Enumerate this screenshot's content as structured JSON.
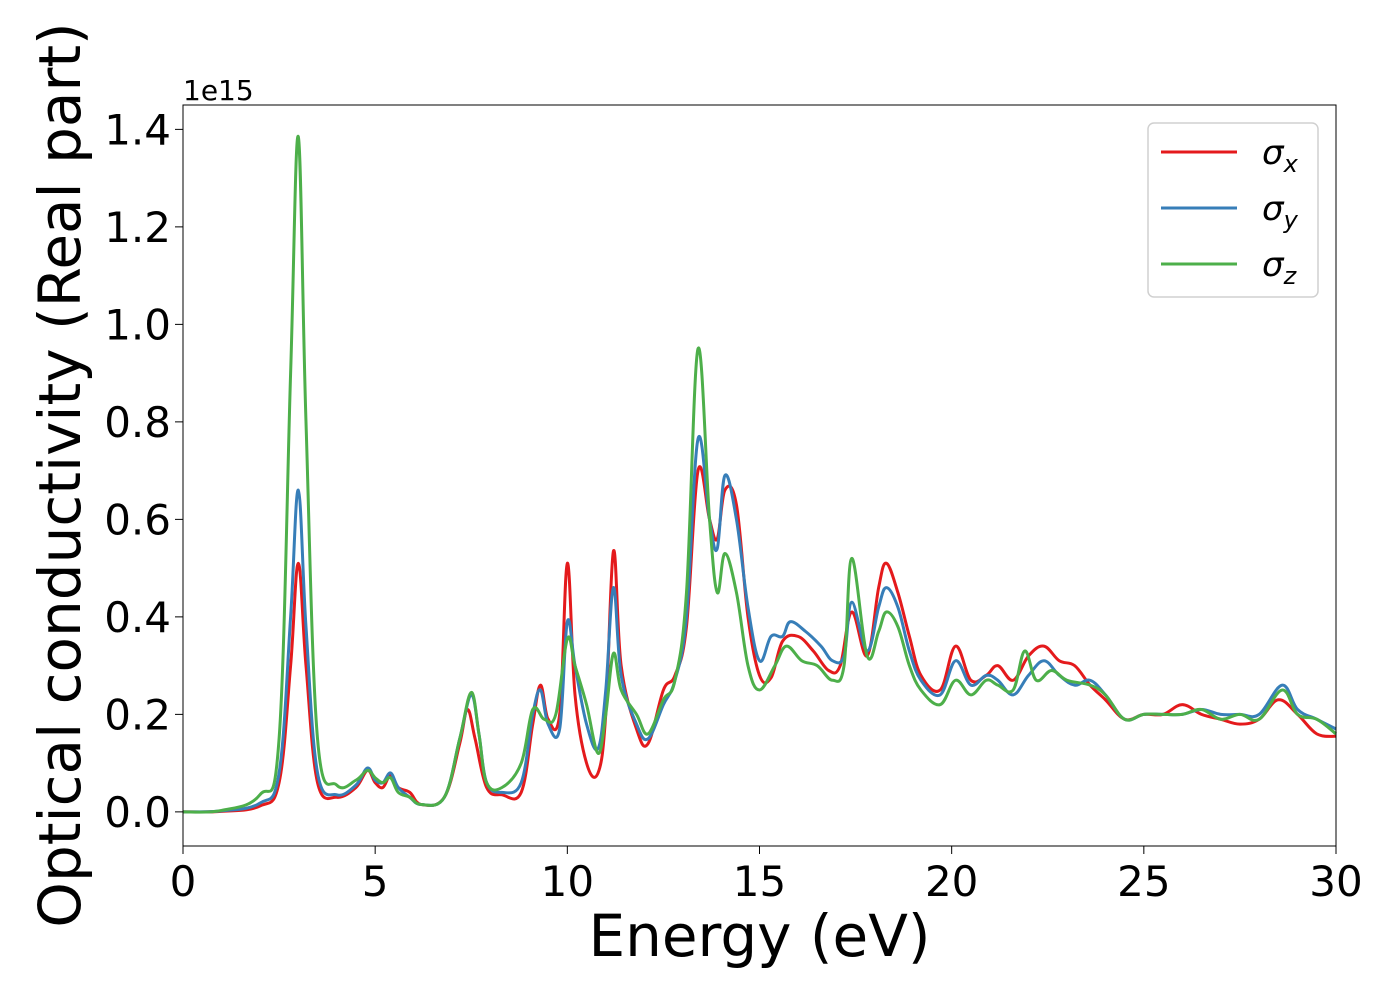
{
  "chart_data": {
    "type": "line",
    "xlabel": "Energy (eV)",
    "ylabel": "Optical conductivity (Real part)",
    "y_offset_label": "1e15",
    "xlim": [
      0,
      30
    ],
    "ylim": [
      -0.07,
      1.45
    ],
    "x_ticks": [
      0,
      5,
      10,
      15,
      20,
      25,
      30
    ],
    "y_ticks": [
      0.0,
      0.2,
      0.4,
      0.6,
      0.8,
      1.0,
      1.2,
      1.4
    ],
    "x_tick_labels": [
      "0",
      "5",
      "10",
      "15",
      "20",
      "25",
      "30"
    ],
    "y_tick_labels": [
      "0.0",
      "0.2",
      "0.4",
      "0.6",
      "0.8",
      "1.0",
      "1.2",
      "1.4"
    ],
    "grid": false,
    "legend_position": "top-right",
    "series": [
      {
        "name": "σx",
        "label_base": "σ",
        "label_sub": "x",
        "color": "#e41a1c",
        "points": [
          [
            0,
            0
          ],
          [
            1,
            0.001
          ],
          [
            2,
            0.012
          ],
          [
            2.5,
            0.06
          ],
          [
            2.8,
            0.3
          ],
          [
            3.0,
            0.51
          ],
          [
            3.2,
            0.3
          ],
          [
            3.5,
            0.06
          ],
          [
            4.0,
            0.03
          ],
          [
            4.5,
            0.05
          ],
          [
            4.8,
            0.085
          ],
          [
            5.0,
            0.06
          ],
          [
            5.2,
            0.05
          ],
          [
            5.4,
            0.075
          ],
          [
            5.6,
            0.05
          ],
          [
            5.9,
            0.04
          ],
          [
            6.2,
            0.015
          ],
          [
            6.8,
            0.03
          ],
          [
            7.2,
            0.14
          ],
          [
            7.4,
            0.21
          ],
          [
            7.6,
            0.15
          ],
          [
            7.9,
            0.05
          ],
          [
            8.3,
            0.035
          ],
          [
            8.8,
            0.04
          ],
          [
            9.1,
            0.18
          ],
          [
            9.3,
            0.26
          ],
          [
            9.5,
            0.19
          ],
          [
            9.8,
            0.2
          ],
          [
            10.0,
            0.51
          ],
          [
            10.2,
            0.24
          ],
          [
            10.5,
            0.1
          ],
          [
            10.8,
            0.08
          ],
          [
            11.0,
            0.2
          ],
          [
            11.2,
            0.535
          ],
          [
            11.4,
            0.3
          ],
          [
            11.8,
            0.17
          ],
          [
            12.1,
            0.14
          ],
          [
            12.5,
            0.25
          ],
          [
            12.8,
            0.28
          ],
          [
            13.1,
            0.38
          ],
          [
            13.4,
            0.7
          ],
          [
            13.7,
            0.6
          ],
          [
            13.9,
            0.56
          ],
          [
            14.1,
            0.66
          ],
          [
            14.4,
            0.63
          ],
          [
            14.7,
            0.4
          ],
          [
            15.0,
            0.28
          ],
          [
            15.3,
            0.275
          ],
          [
            15.6,
            0.35
          ],
          [
            16.0,
            0.36
          ],
          [
            16.4,
            0.33
          ],
          [
            16.8,
            0.29
          ],
          [
            17.1,
            0.3
          ],
          [
            17.4,
            0.41
          ],
          [
            17.8,
            0.32
          ],
          [
            18.1,
            0.46
          ],
          [
            18.3,
            0.51
          ],
          [
            18.6,
            0.45
          ],
          [
            18.9,
            0.36
          ],
          [
            19.2,
            0.28
          ],
          [
            19.7,
            0.25
          ],
          [
            20.1,
            0.34
          ],
          [
            20.5,
            0.27
          ],
          [
            20.9,
            0.28
          ],
          [
            21.2,
            0.3
          ],
          [
            21.6,
            0.27
          ],
          [
            22.0,
            0.32
          ],
          [
            22.4,
            0.34
          ],
          [
            22.8,
            0.31
          ],
          [
            23.2,
            0.3
          ],
          [
            23.6,
            0.26
          ],
          [
            24.0,
            0.23
          ],
          [
            24.5,
            0.19
          ],
          [
            25.0,
            0.2
          ],
          [
            25.5,
            0.2
          ],
          [
            26.0,
            0.22
          ],
          [
            26.5,
            0.2
          ],
          [
            27.0,
            0.19
          ],
          [
            27.5,
            0.18
          ],
          [
            28.0,
            0.19
          ],
          [
            28.5,
            0.23
          ],
          [
            29.0,
            0.2
          ],
          [
            29.5,
            0.16
          ],
          [
            30.0,
            0.155
          ]
        ]
      },
      {
        "name": "σy",
        "label_base": "σ",
        "label_sub": "y",
        "color": "#377eb8",
        "points": [
          [
            0,
            0
          ],
          [
            1,
            0.002
          ],
          [
            2,
            0.018
          ],
          [
            2.5,
            0.08
          ],
          [
            2.8,
            0.4
          ],
          [
            3.0,
            0.66
          ],
          [
            3.2,
            0.38
          ],
          [
            3.5,
            0.08
          ],
          [
            4.0,
            0.035
          ],
          [
            4.5,
            0.055
          ],
          [
            4.8,
            0.09
          ],
          [
            5.0,
            0.065
          ],
          [
            5.2,
            0.06
          ],
          [
            5.4,
            0.08
          ],
          [
            5.6,
            0.05
          ],
          [
            5.9,
            0.03
          ],
          [
            6.2,
            0.015
          ],
          [
            6.8,
            0.03
          ],
          [
            7.2,
            0.15
          ],
          [
            7.5,
            0.24
          ],
          [
            7.7,
            0.16
          ],
          [
            7.9,
            0.06
          ],
          [
            8.3,
            0.04
          ],
          [
            8.8,
            0.06
          ],
          [
            9.1,
            0.2
          ],
          [
            9.3,
            0.25
          ],
          [
            9.5,
            0.18
          ],
          [
            9.8,
            0.17
          ],
          [
            10.0,
            0.39
          ],
          [
            10.2,
            0.3
          ],
          [
            10.5,
            0.18
          ],
          [
            10.8,
            0.13
          ],
          [
            11.0,
            0.25
          ],
          [
            11.2,
            0.46
          ],
          [
            11.4,
            0.28
          ],
          [
            11.8,
            0.18
          ],
          [
            12.1,
            0.15
          ],
          [
            12.5,
            0.22
          ],
          [
            12.8,
            0.27
          ],
          [
            13.1,
            0.4
          ],
          [
            13.4,
            0.765
          ],
          [
            13.7,
            0.6
          ],
          [
            13.9,
            0.54
          ],
          [
            14.1,
            0.69
          ],
          [
            14.4,
            0.6
          ],
          [
            14.7,
            0.42
          ],
          [
            15.0,
            0.31
          ],
          [
            15.3,
            0.36
          ],
          [
            15.6,
            0.36
          ],
          [
            15.8,
            0.39
          ],
          [
            16.2,
            0.37
          ],
          [
            16.6,
            0.34
          ],
          [
            16.9,
            0.31
          ],
          [
            17.2,
            0.32
          ],
          [
            17.4,
            0.43
          ],
          [
            17.8,
            0.33
          ],
          [
            18.1,
            0.42
          ],
          [
            18.3,
            0.46
          ],
          [
            18.6,
            0.42
          ],
          [
            18.9,
            0.33
          ],
          [
            19.2,
            0.27
          ],
          [
            19.7,
            0.24
          ],
          [
            20.1,
            0.31
          ],
          [
            20.5,
            0.26
          ],
          [
            20.9,
            0.28
          ],
          [
            21.2,
            0.27
          ],
          [
            21.6,
            0.24
          ],
          [
            22.0,
            0.28
          ],
          [
            22.4,
            0.31
          ],
          [
            22.8,
            0.28
          ],
          [
            23.2,
            0.26
          ],
          [
            23.6,
            0.27
          ],
          [
            24.0,
            0.24
          ],
          [
            24.5,
            0.19
          ],
          [
            25.0,
            0.2
          ],
          [
            25.5,
            0.2
          ],
          [
            26.0,
            0.2
          ],
          [
            26.5,
            0.21
          ],
          [
            27.0,
            0.2
          ],
          [
            27.5,
            0.2
          ],
          [
            28.0,
            0.2
          ],
          [
            28.6,
            0.26
          ],
          [
            29.0,
            0.21
          ],
          [
            29.5,
            0.19
          ],
          [
            30.0,
            0.17
          ]
        ]
      },
      {
        "name": "σz",
        "label_base": "σ",
        "label_sub": "z",
        "color": "#4daf4a",
        "points": [
          [
            0,
            0
          ],
          [
            1,
            0.003
          ],
          [
            2,
            0.035
          ],
          [
            2.5,
            0.15
          ],
          [
            2.8,
            0.9
          ],
          [
            3.0,
            1.385
          ],
          [
            3.2,
            0.8
          ],
          [
            3.5,
            0.15
          ],
          [
            4.0,
            0.055
          ],
          [
            4.5,
            0.065
          ],
          [
            4.8,
            0.085
          ],
          [
            5.0,
            0.07
          ],
          [
            5.2,
            0.06
          ],
          [
            5.4,
            0.07
          ],
          [
            5.6,
            0.04
          ],
          [
            5.9,
            0.03
          ],
          [
            6.2,
            0.015
          ],
          [
            6.8,
            0.03
          ],
          [
            7.2,
            0.15
          ],
          [
            7.5,
            0.245
          ],
          [
            7.7,
            0.16
          ],
          [
            7.9,
            0.06
          ],
          [
            8.3,
            0.05
          ],
          [
            8.8,
            0.1
          ],
          [
            9.1,
            0.21
          ],
          [
            9.4,
            0.19
          ],
          [
            9.7,
            0.2
          ],
          [
            10.0,
            0.355
          ],
          [
            10.2,
            0.3
          ],
          [
            10.5,
            0.22
          ],
          [
            10.8,
            0.12
          ],
          [
            11.0,
            0.2
          ],
          [
            11.2,
            0.325
          ],
          [
            11.4,
            0.25
          ],
          [
            11.8,
            0.2
          ],
          [
            12.1,
            0.16
          ],
          [
            12.5,
            0.23
          ],
          [
            12.8,
            0.27
          ],
          [
            13.1,
            0.45
          ],
          [
            13.4,
            0.95
          ],
          [
            13.7,
            0.6
          ],
          [
            13.9,
            0.45
          ],
          [
            14.1,
            0.53
          ],
          [
            14.4,
            0.45
          ],
          [
            14.7,
            0.3
          ],
          [
            15.0,
            0.25
          ],
          [
            15.4,
            0.3
          ],
          [
            15.7,
            0.34
          ],
          [
            16.1,
            0.31
          ],
          [
            16.5,
            0.3
          ],
          [
            16.9,
            0.27
          ],
          [
            17.2,
            0.3
          ],
          [
            17.4,
            0.52
          ],
          [
            17.8,
            0.32
          ],
          [
            18.1,
            0.37
          ],
          [
            18.3,
            0.41
          ],
          [
            18.6,
            0.38
          ],
          [
            18.9,
            0.3
          ],
          [
            19.2,
            0.25
          ],
          [
            19.7,
            0.22
          ],
          [
            20.1,
            0.27
          ],
          [
            20.5,
            0.24
          ],
          [
            20.9,
            0.27
          ],
          [
            21.2,
            0.26
          ],
          [
            21.6,
            0.25
          ],
          [
            21.9,
            0.33
          ],
          [
            22.2,
            0.27
          ],
          [
            22.6,
            0.29
          ],
          [
            23.0,
            0.27
          ],
          [
            23.6,
            0.26
          ],
          [
            24.0,
            0.24
          ],
          [
            24.5,
            0.19
          ],
          [
            25.0,
            0.2
          ],
          [
            25.5,
            0.2
          ],
          [
            26.0,
            0.2
          ],
          [
            26.5,
            0.21
          ],
          [
            27.0,
            0.19
          ],
          [
            27.5,
            0.2
          ],
          [
            28.0,
            0.19
          ],
          [
            28.6,
            0.25
          ],
          [
            29.0,
            0.2
          ],
          [
            29.5,
            0.19
          ],
          [
            30.0,
            0.16
          ]
        ]
      }
    ]
  }
}
